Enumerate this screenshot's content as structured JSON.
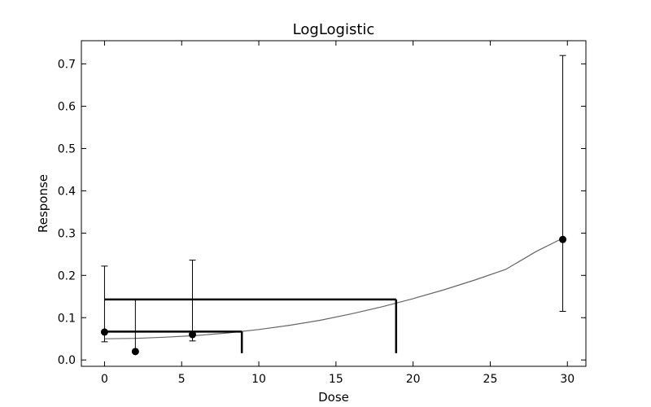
{
  "chart_data": {
    "type": "scatter",
    "title": "LogLogistic",
    "xlabel": "Dose",
    "ylabel": "Response",
    "xlim": [
      -1.5,
      31.2
    ],
    "ylim": [
      -0.015,
      0.755
    ],
    "xticks": [
      0,
      5,
      10,
      15,
      20,
      25,
      30
    ],
    "xtick_labels": [
      "0",
      "5",
      "10",
      "15",
      "20",
      "25",
      "30"
    ],
    "yticks": [
      0.0,
      0.1,
      0.2,
      0.3,
      0.4,
      0.5,
      0.6,
      0.7
    ],
    "ytick_labels": [
      "0.0",
      "0.1",
      "0.2",
      "0.3",
      "0.4",
      "0.5",
      "0.6",
      "0.7"
    ],
    "grid": false,
    "points": [
      {
        "x": 0,
        "y": 0.066,
        "err_low": 0.043,
        "err_high": 0.222
      },
      {
        "x": 2,
        "y": 0.02,
        "err_low": 0.02,
        "err_high": 0.143
      },
      {
        "x": 5.7,
        "y": 0.06,
        "err_low": 0.045,
        "err_high": 0.236
      },
      {
        "x": 29.7,
        "y": 0.285,
        "err_low": 0.115,
        "err_high": 0.72
      }
    ],
    "fitted_curve": {
      "x": [
        0,
        2,
        4,
        6,
        8,
        10,
        12,
        14,
        16,
        18,
        20,
        22,
        24,
        26,
        28,
        29.7
      ],
      "y": [
        0.05,
        0.051,
        0.054,
        0.058,
        0.064,
        0.072,
        0.082,
        0.094,
        0.109,
        0.126,
        0.145,
        0.166,
        0.189,
        0.214,
        0.257,
        0.288
      ]
    },
    "bmd_markers": [
      {
        "response": 0.067,
        "dose": 8.9,
        "drop_to": 0.016
      },
      {
        "response": 0.143,
        "dose": 18.9,
        "drop_to": 0.016
      }
    ],
    "colors": {
      "points": "#000000",
      "curve": "#666666",
      "markers": "#000000"
    }
  }
}
